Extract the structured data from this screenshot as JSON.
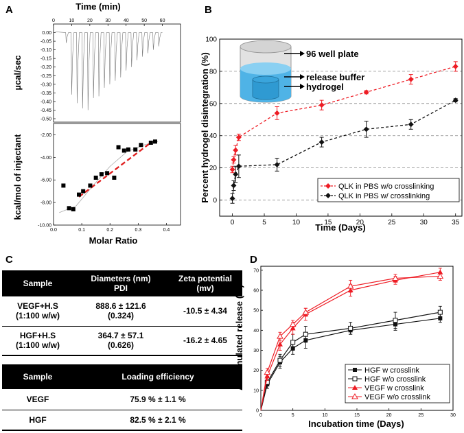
{
  "labels": {
    "A": "A",
    "B": "B",
    "C": "C",
    "D": "D"
  },
  "chart_data": [
    {
      "id": "A_top",
      "type": "line",
      "title": "Time (min)",
      "ylabel": "µcal/sec",
      "xlim": [
        0,
        70
      ],
      "ylim": [
        -0.52,
        0.05
      ],
      "x_ticks": [
        "0",
        "10",
        "20",
        "30",
        "40",
        "50",
        "60"
      ],
      "y_ticks": [
        "0.00",
        "-0.05",
        "-0.10",
        "-0.15",
        "-0.20",
        "-0.25",
        "-0.30",
        "-0.35",
        "-0.40",
        "-0.45",
        "-0.50"
      ],
      "injection_times": [
        7,
        10,
        13,
        16,
        19,
        22,
        25,
        28,
        31,
        34,
        37,
        40,
        43,
        46,
        49,
        52,
        55,
        58
      ],
      "peak_depths": [
        -0.06,
        -0.36,
        -0.41,
        -0.44,
        -0.45,
        -0.38,
        -0.37,
        -0.32,
        -0.3,
        -0.28,
        -0.26,
        -0.22,
        -0.2,
        -0.16,
        -0.14,
        -0.12,
        -0.1,
        -0.08
      ]
    },
    {
      "id": "A_bottom",
      "type": "scatter",
      "xlabel": "Molar Ratio",
      "ylabel": "kcal/mol of injectant",
      "xlim": [
        0,
        0.45
      ],
      "ylim": [
        -10,
        -1
      ],
      "x_ticks": [
        "0.0",
        "0.1",
        "0.2",
        "0.3",
        "0.4"
      ],
      "y_ticks": [
        "-2.00",
        "-4.00",
        "-6.00",
        "-8.00",
        "-10.00"
      ],
      "points": [
        [
          0.035,
          -6.5
        ],
        [
          0.055,
          -8.5
        ],
        [
          0.07,
          -8.6
        ],
        [
          0.09,
          -7.3
        ],
        [
          0.105,
          -7.0
        ],
        [
          0.13,
          -6.5
        ],
        [
          0.15,
          -5.8
        ],
        [
          0.17,
          -5.5
        ],
        [
          0.19,
          -5.4
        ],
        [
          0.215,
          -5.8
        ],
        [
          0.23,
          -3.1
        ],
        [
          0.25,
          -3.4
        ],
        [
          0.265,
          -3.3
        ],
        [
          0.29,
          -3.3
        ],
        [
          0.31,
          -2.9
        ],
        [
          0.345,
          -2.7
        ],
        [
          0.36,
          -2.6
        ]
      ],
      "fit_line": [
        [
          0.09,
          -7.5
        ],
        [
          0.35,
          -2.6
        ]
      ],
      "fit_curve": [
        [
          0.02,
          -8.9
        ],
        [
          0.08,
          -8.3
        ],
        [
          0.14,
          -6.5
        ],
        [
          0.2,
          -4.8
        ],
        [
          0.26,
          -3.5
        ],
        [
          0.32,
          -2.9
        ],
        [
          0.37,
          -2.6
        ]
      ]
    },
    {
      "id": "B",
      "type": "line",
      "xlabel": "Time (Days)",
      "ylabel": "Percent hydrogel disintegration (%)",
      "xlim": [
        -2,
        36
      ],
      "ylim": [
        -10,
        100
      ],
      "x_ticks": [
        0,
        5,
        10,
        15,
        20,
        25,
        30,
        35
      ],
      "y_ticks": [
        0,
        20,
        40,
        60,
        80,
        100
      ],
      "grid_y": [
        0,
        20,
        40,
        60,
        80
      ],
      "series": [
        {
          "name": "QLK in PBS w/o crosslinking",
          "color": "#ee1c24",
          "x": [
            0,
            0.2,
            0.5,
            1,
            7,
            14,
            21,
            28,
            35
          ],
          "y": [
            19,
            25,
            31,
            39,
            54,
            59,
            67,
            75,
            83
          ],
          "err": [
            2,
            2,
            3,
            2,
            4,
            3,
            1,
            3,
            3
          ]
        },
        {
          "name": "QLK in PBS w/ crosslinking",
          "color": "#111111",
          "x": [
            0,
            0.2,
            0.5,
            1,
            7,
            14,
            21,
            28,
            35
          ],
          "y": [
            1,
            9,
            16,
            21,
            22,
            36,
            44,
            47,
            62
          ],
          "err": [
            3,
            3,
            5,
            7,
            4,
            3,
            5,
            3,
            1
          ]
        }
      ],
      "annotations": [
        "96 well plate",
        "release buffer",
        "hydrogel"
      ]
    },
    {
      "id": "D",
      "type": "line",
      "xlabel": "Incubation time (Days)",
      "ylabel": "Accumulated release (%)",
      "xlim": [
        0,
        30
      ],
      "ylim": [
        0,
        72
      ],
      "x_ticks": [
        "0",
        "5",
        "10",
        "15",
        "20",
        "25",
        "30"
      ],
      "y_ticks": [
        "0",
        "10",
        "20",
        "30",
        "40",
        "50",
        "60",
        "70"
      ],
      "series": [
        {
          "name": "HGF w crosslink",
          "color": "#111111",
          "marker": "filled-square",
          "x": [
            1,
            3,
            5,
            7,
            14,
            21,
            28
          ],
          "y": [
            13,
            24,
            31,
            35,
            40,
            43,
            46
          ],
          "err": [
            2,
            3,
            3,
            4,
            2,
            3,
            2
          ]
        },
        {
          "name": "HGF w/o crosslink",
          "color": "#111111",
          "marker": "open-square",
          "x": [
            1,
            3,
            5,
            7,
            14,
            21,
            28
          ],
          "y": [
            14,
            25,
            34,
            38,
            41,
            45,
            49
          ],
          "err": [
            3,
            3,
            4,
            4,
            3,
            4,
            3
          ]
        },
        {
          "name": "VEGF w crosslink",
          "color": "#ee1c24",
          "marker": "filled-triangle",
          "x": [
            1,
            3,
            5,
            7,
            14,
            21,
            28
          ],
          "y": [
            17,
            33,
            41,
            48,
            60,
            65,
            69
          ],
          "err": [
            2,
            3,
            3,
            3,
            3,
            2,
            2
          ]
        },
        {
          "name": "VEGF w/o crosslink",
          "color": "#ee1c24",
          "marker": "open-triangle",
          "x": [
            1,
            3,
            5,
            7,
            14,
            21,
            28
          ],
          "y": [
            19,
            37,
            43,
            49,
            62,
            66,
            67
          ],
          "err": [
            2,
            2,
            2,
            2,
            3,
            2,
            2
          ]
        }
      ]
    }
  ],
  "table1": {
    "headers": {
      "sample": "Sample",
      "diameters": "Diameters (nm)",
      "pdi": "PDI",
      "zeta": "Zeta potential",
      "zeta_unit": "(mv)"
    },
    "rows": [
      {
        "sample": "VEGF+H.S",
        "ratio": "(1:100 w/w)",
        "diameter": "888.6 ± 121.6",
        "pdi": "(0.324)",
        "zeta": "-10.5 ± 4.34"
      },
      {
        "sample": "HGF+H.S",
        "ratio": "(1:100 w/w)",
        "diameter": "364.7 ± 57.1",
        "pdi": "(0.626)",
        "zeta": "-16.2 ± 4.65"
      }
    ]
  },
  "table2": {
    "headers": {
      "sample": "Sample",
      "loading": "Loading efficiency"
    },
    "rows": [
      {
        "sample": "VEGF",
        "value": "75.9 % ± 1.1 %"
      },
      {
        "sample": "HGF",
        "value": "82.5 % ± 2.1 %"
      }
    ]
  }
}
